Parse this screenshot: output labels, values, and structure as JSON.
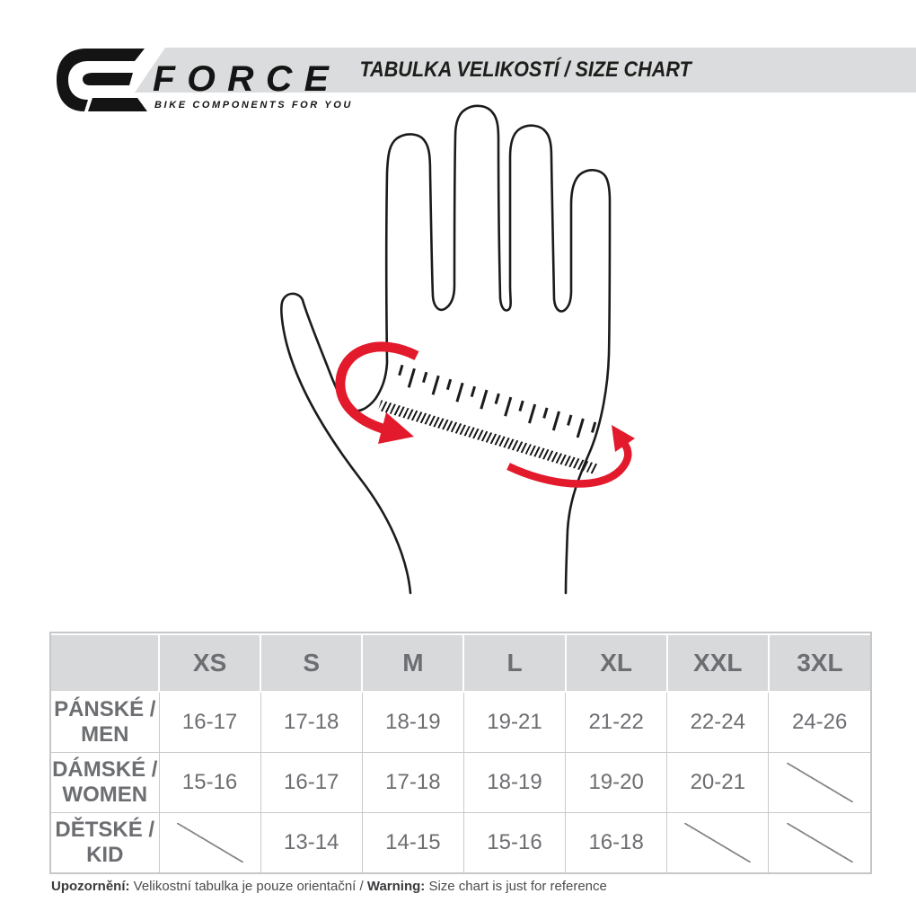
{
  "header": {
    "logo": {
      "brand": "FORCE",
      "tagline": "BIKE COMPONENTS FOR YOU"
    },
    "title": "TABULKA VELIKOSTÍ / SIZE CHART"
  },
  "illustration": {
    "description": "hand with measuring tape around palm",
    "tape_color": "#f6a733",
    "arrow_color": "#e21a2c",
    "outline_color": "#1b1b1b"
  },
  "size_table": {
    "columns": [
      "XS",
      "S",
      "M",
      "L",
      "XL",
      "XXL",
      "3XL"
    ],
    "rows": [
      {
        "label_line1": "PÁNSKÉ /",
        "label_line2": "MEN",
        "values": [
          "16-17",
          "17-18",
          "18-19",
          "19-21",
          "21-22",
          "22-24",
          "24-26"
        ]
      },
      {
        "label_line1": "DÁMSKÉ /",
        "label_line2": "WOMEN",
        "values": [
          "15-16",
          "16-17",
          "17-18",
          "18-19",
          "19-20",
          "20-21",
          ""
        ]
      },
      {
        "label_line1": "DĚTSKÉ /",
        "label_line2": "KID",
        "values": [
          "",
          "13-14",
          "14-15",
          "15-16",
          "16-18",
          "",
          ""
        ]
      }
    ]
  },
  "footer": {
    "bold1": "Upozornění:",
    "text1": " Velikostní tabulka je pouze orientační / ",
    "bold2": "Warning:",
    "text2": " Size chart is just for reference"
  }
}
